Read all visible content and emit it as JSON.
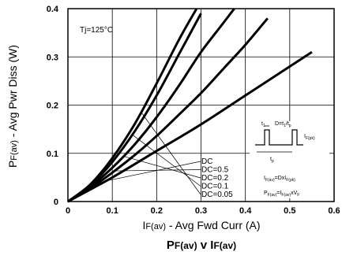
{
  "chart_data": {
    "type": "line",
    "title_main": "P",
    "title_main_sub": "F(av)",
    "title_mid": " v ",
    "title_end": "I",
    "title_end_sub": "F(av)",
    "xlabel_main": "I",
    "xlabel_sub": "F(av)",
    "xlabel_rest": " - Avg Fwd Curr (A)",
    "ylabel_main": "P",
    "ylabel_sub": "F(av)",
    "ylabel_rest": " - Avg Pwr Diss (W)",
    "condition": "Tj=125°C",
    "xlim": [
      0,
      0.6
    ],
    "ylim": [
      0,
      0.4
    ],
    "xticks": [
      0,
      0.1,
      0.2,
      0.3,
      0.4,
      0.5,
      0.6
    ],
    "xtick_labels": [
      "0",
      "0.1",
      "0.2",
      "0.3",
      "0.4",
      "0.5",
      "0.6"
    ],
    "yticks": [
      0,
      0.1,
      0.2,
      0.3,
      0.4
    ],
    "ytick_labels": [
      "0",
      "0.1",
      "0.2",
      "0.3",
      "0.4"
    ],
    "grid": true,
    "series": [
      {
        "name": "DC=0.05",
        "x": [
          0,
          0.05,
          0.1,
          0.15,
          0.2,
          0.25,
          0.29
        ],
        "y": [
          0,
          0.035,
          0.09,
          0.16,
          0.245,
          0.335,
          0.4
        ]
      },
      {
        "name": "DC=0.1",
        "x": [
          0,
          0.05,
          0.1,
          0.15,
          0.2,
          0.25,
          0.3
        ],
        "y": [
          0,
          0.033,
          0.082,
          0.145,
          0.22,
          0.305,
          0.39
        ]
      },
      {
        "name": "DC=0.2",
        "x": [
          0,
          0.05,
          0.1,
          0.15,
          0.2,
          0.25,
          0.3,
          0.35,
          0.375
        ],
        "y": [
          0,
          0.03,
          0.07,
          0.118,
          0.175,
          0.24,
          0.31,
          0.37,
          0.4
        ]
      },
      {
        "name": "DC=0.5",
        "x": [
          0,
          0.05,
          0.1,
          0.15,
          0.2,
          0.25,
          0.3,
          0.35,
          0.4,
          0.45
        ],
        "y": [
          0,
          0.027,
          0.06,
          0.096,
          0.136,
          0.18,
          0.225,
          0.275,
          0.325,
          0.38
        ]
      },
      {
        "name": "DC",
        "x": [
          0,
          0.1,
          0.2,
          0.3,
          0.4,
          0.5,
          0.55
        ],
        "y": [
          0,
          0.05,
          0.105,
          0.16,
          0.22,
          0.28,
          0.31
        ]
      }
    ],
    "inset": {
      "label_dt": "D=t",
      "label_dt_sub1": "1",
      "label_dt_mid": "/t",
      "label_dt_sub2": "p",
      "label_t1": "t",
      "label_t1_sub": "1",
      "label_tp": "t",
      "label_tp_sub": "p",
      "label_ifpk": "I",
      "label_ifpk_sub": "F(pk)",
      "eq1_a": "I",
      "eq1_a_sub": "F(av)",
      "eq1_b": "=DxI",
      "eq1_b_sub": "F(pk)",
      "eq2_a": "P",
      "eq2_a_sub": "F(av)",
      "eq2_b": "=I",
      "eq2_b_sub": "F(av)",
      "eq2_c": "xV",
      "eq2_c_sub": "F"
    }
  }
}
